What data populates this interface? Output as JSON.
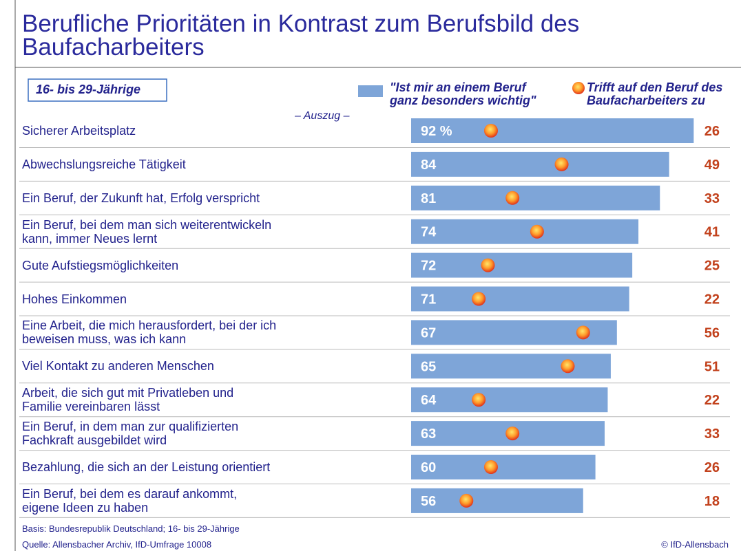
{
  "chart_data": {
    "type": "bar-dot",
    "title": "Berufliche Prioritäten in Kontrast zum Berufsbild des\nBaufacharbeiters",
    "subtitle": "16- bis 29-Jährige",
    "annotation": "– Auszug –",
    "categories": [
      "Sicherer Arbeitsplatz",
      "Abwechslungsreiche Tätigkeit",
      "Ein Beruf, der Zukunft hat, Erfolg verspricht",
      "Ein Beruf, bei dem man sich weiterentwickeln\nkann, immer Neues lernt",
      "Gute Aufstiegsmöglichkeiten",
      "Hohes Einkommen",
      "Eine Arbeit, die mich herausfordert, bei der ich\nbeweisen muss, was ich kann",
      "Viel Kontakt zu anderen Menschen",
      "Arbeit, die sich gut mit Privatleben und\nFamilie vereinbaren lässt",
      "Ein Beruf, in dem man zur qualifizierten\nFachkraft ausgebildet wird",
      "Bezahlung, die sich an der Leistung orientiert",
      "Ein Beruf, bei dem es darauf ankommt,\neigene Ideen zu haben"
    ],
    "series": [
      {
        "name": "\"Ist mir an einem Beruf\nganz besonders wichtig\"",
        "color": "#7ea5d8",
        "values": [
          92,
          84,
          81,
          74,
          72,
          71,
          67,
          65,
          64,
          63,
          60,
          56
        ],
        "value_labels": [
          "92 %",
          "84",
          "81",
          "74",
          "72",
          "71",
          "67",
          "65",
          "64",
          "63",
          "60",
          "56"
        ]
      },
      {
        "name": "Trifft auf den Beruf des\nBaufacharbeiters zu",
        "color": "#e8451c",
        "values": [
          26,
          49,
          33,
          41,
          25,
          22,
          56,
          51,
          22,
          33,
          26,
          18
        ]
      }
    ],
    "xlim": [
      0,
      100
    ],
    "footer": [
      "Basis: Bundesrepublik Deutschland; 16- bis 29-Jährige",
      "Quelle: Allensbacher Archiv, IfD-Umfrage 10008"
    ],
    "copyright": "© IfD-Allensbach"
  }
}
